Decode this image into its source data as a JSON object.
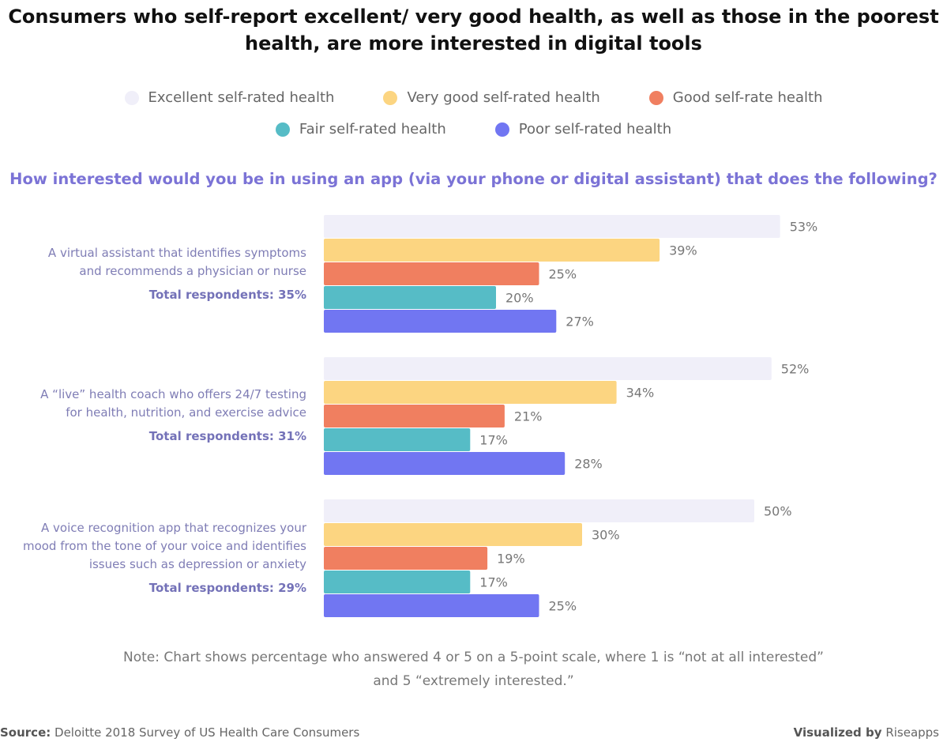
{
  "title": "Consumers who self-report excellent/ very good health, as well as those in the poorest health, are more interested in digital tools",
  "chart_data": {
    "type": "bar",
    "orientation": "horizontal",
    "question": "How interested would you be in using an app (via your phone or digital assistant) that does the following?",
    "xlim": [
      0,
      100
    ],
    "unit": "%",
    "grid": false,
    "legend_position": "top",
    "series": [
      {
        "name": "Excellent self-rated health",
        "color": "#f0eff9",
        "values": [
          53,
          52,
          50
        ]
      },
      {
        "name": "Very good self-rated health",
        "color": "#fcd581",
        "values": [
          39,
          34,
          30
        ]
      },
      {
        "name": "Good self-rate health",
        "color": "#f07f60",
        "values": [
          25,
          21,
          19
        ]
      },
      {
        "name": "Fair self-rated health",
        "color": "#56bcc6",
        "values": [
          20,
          17,
          17
        ]
      },
      {
        "name": "Poor self-rated health",
        "color": "#7176f2",
        "values": [
          27,
          28,
          25
        ]
      }
    ],
    "categories": [
      {
        "lines": [
          "A virtual assistant that identifies symptoms",
          "and recommends a physician or nurse"
        ],
        "total": "Total respondents: 35%"
      },
      {
        "lines": [
          "A “live” health coach who offers 24/7 testing",
          "for health, nutrition, and exercise advice"
        ],
        "total": "Total respondents: 31%"
      },
      {
        "lines": [
          "A voice recognition app that recognizes your",
          "mood from the tone of your voice and identifies",
          "issues such as depression or anxiety"
        ],
        "total": "Total respondents: 29%"
      }
    ]
  },
  "note": [
    "Note: Chart shows percentage who answered 4 or 5 on a 5-point scale, where 1 is “not at all interested”",
    "and 5 “extremely interested.”"
  ],
  "source": {
    "label": "Source:",
    "text": "Deloitte 2018 Survey of US Health Care Consumers"
  },
  "credit": {
    "label": "Visualized by",
    "text": "Riseapps"
  }
}
